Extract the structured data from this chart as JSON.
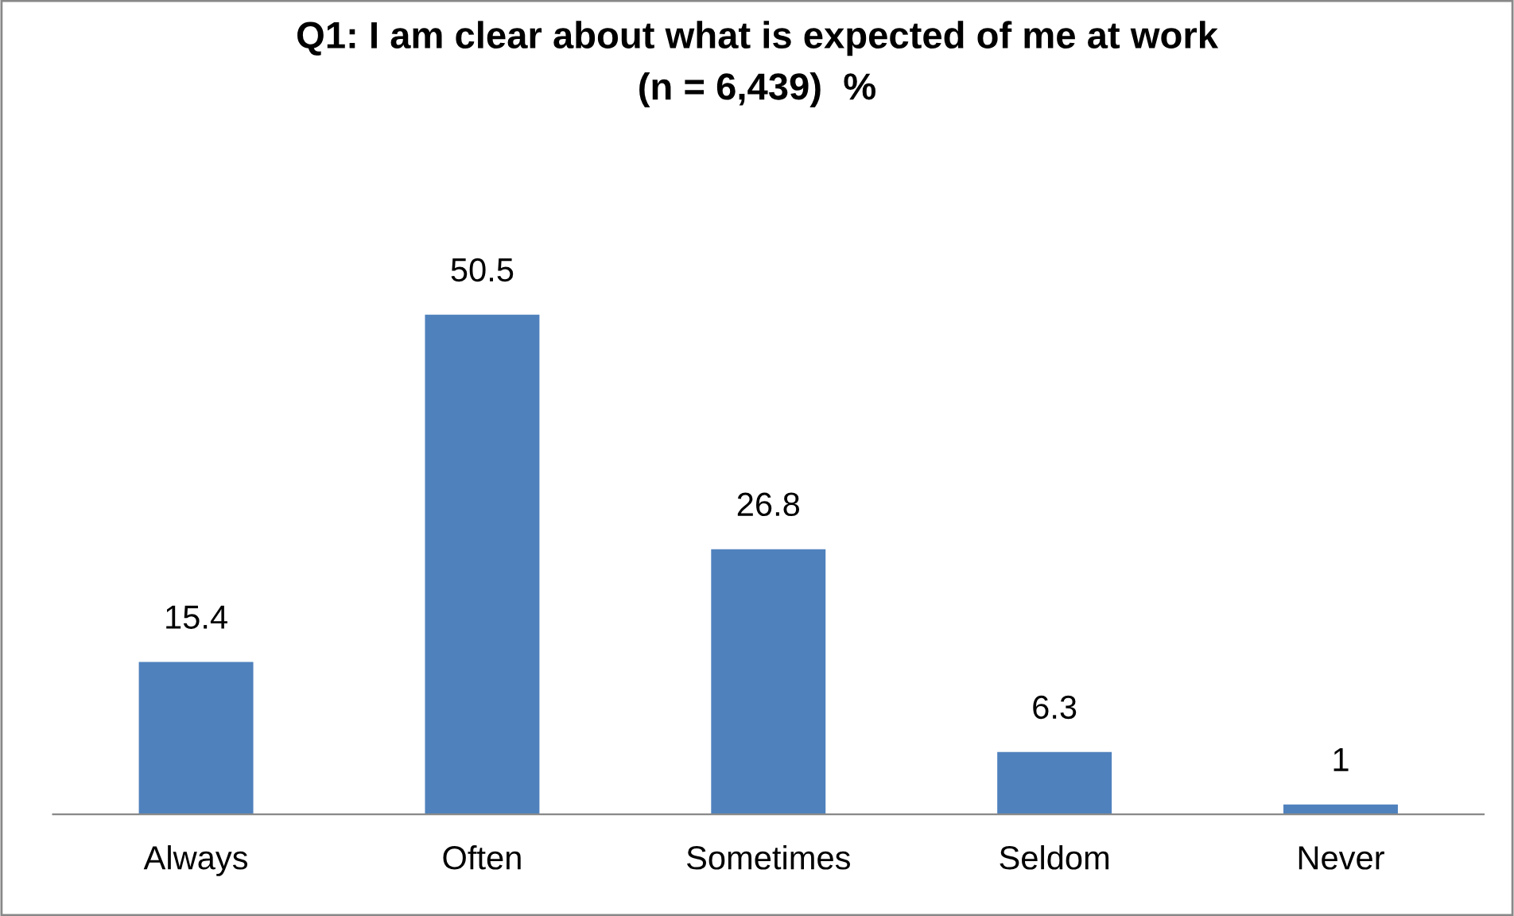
{
  "chart_data": {
    "type": "bar",
    "title": "Q1: I am clear about what is expected of me at work\n(n = 6,439)  %",
    "categories": [
      "Always",
      "Often",
      "Sometimes",
      "Seldom",
      "Never"
    ],
    "values": [
      15.4,
      50.5,
      26.8,
      6.3,
      1
    ],
    "color": "#4f81bd",
    "data_labels": true,
    "grid": false,
    "legend": false
  }
}
